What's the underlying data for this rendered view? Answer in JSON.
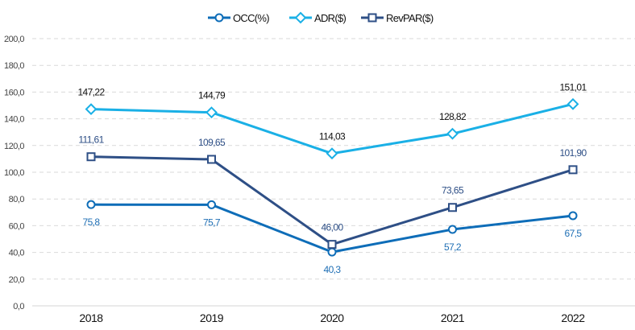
{
  "chart_data": {
    "type": "line",
    "title": "",
    "xlabel": "",
    "ylabel": "",
    "categories": [
      "2018",
      "2019",
      "2020",
      "2021",
      "2022"
    ],
    "ylim": [
      0,
      200
    ],
    "yticks": [
      0,
      20,
      40,
      60,
      80,
      100,
      120,
      140,
      160,
      180,
      200
    ],
    "ytick_labels": [
      "0,0",
      "20,0",
      "40,0",
      "60,0",
      "80,0",
      "100,0",
      "120,0",
      "140,0",
      "160,0",
      "180,0",
      "200,0"
    ],
    "grid": true,
    "legend_position": "top-center",
    "series": [
      {
        "name": "OCC(%)",
        "color": "#0e6db8",
        "marker": "circle",
        "label_color": "#1f6fb5",
        "label_position": "below",
        "values": [
          75.8,
          75.7,
          40.3,
          57.2,
          67.5
        ],
        "labels": [
          "75,8",
          "75,7",
          "40,3",
          "57,2",
          "67,5"
        ]
      },
      {
        "name": "ADR($)",
        "color": "#1ab0e6",
        "marker": "diamond",
        "label_color": "#111111",
        "label_position": "above",
        "values": [
          147.22,
          144.79,
          114.03,
          128.82,
          151.01
        ],
        "labels": [
          "147,22",
          "144,79",
          "114,03",
          "128,82",
          "151,01"
        ]
      },
      {
        "name": "RevPAR($)",
        "color": "#2e4f86",
        "marker": "square",
        "label_color": "#2e4f86",
        "label_position": "above",
        "values": [
          111.61,
          109.65,
          46.0,
          73.65,
          101.9
        ],
        "labels": [
          "111,61",
          "109,65",
          "46,00",
          "73,65",
          "101,90"
        ]
      }
    ]
  }
}
